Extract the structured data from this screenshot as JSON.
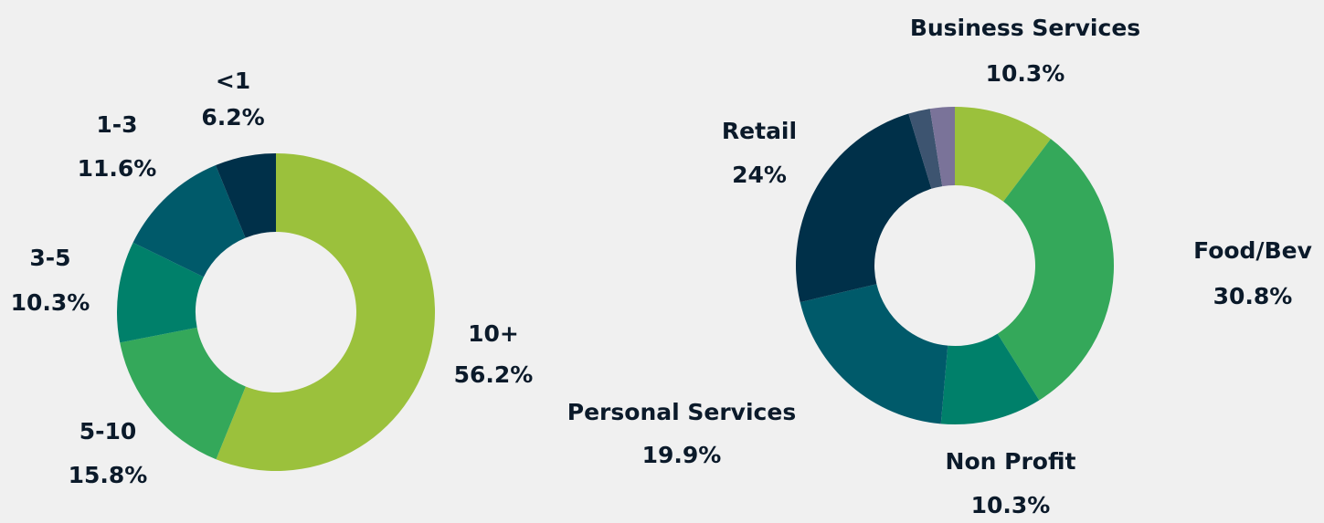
{
  "chart_data": [
    {
      "type": "donut",
      "categories": [
        "10+",
        "5-10",
        "3-5",
        "1-3",
        "<1"
      ],
      "values": [
        56.2,
        15.8,
        10.3,
        11.6,
        6.2
      ],
      "value_labels": [
        "56.2%",
        "15.8%",
        "10.3%",
        "11.6%",
        "6.2%"
      ],
      "colors": [
        "#9bc13c",
        "#34a85a",
        "#00806a",
        "#005a6a",
        "#003049"
      ]
    },
    {
      "type": "donut",
      "categories": [
        "Business Services",
        "Food/Bev",
        "Non Profit",
        "Personal Services",
        "Retail",
        null,
        null
      ],
      "values": [
        10.3,
        30.8,
        10.3,
        19.9,
        24,
        2.2,
        2.5
      ],
      "value_labels": [
        "10.3%",
        "30.8%",
        "10.3%",
        "19.9%",
        "24%",
        null,
        null
      ],
      "colors": [
        "#9bc13c",
        "#34a85a",
        "#00806a",
        "#005a6a",
        "#003049",
        "#3d5470",
        "#7a7399"
      ]
    }
  ]
}
